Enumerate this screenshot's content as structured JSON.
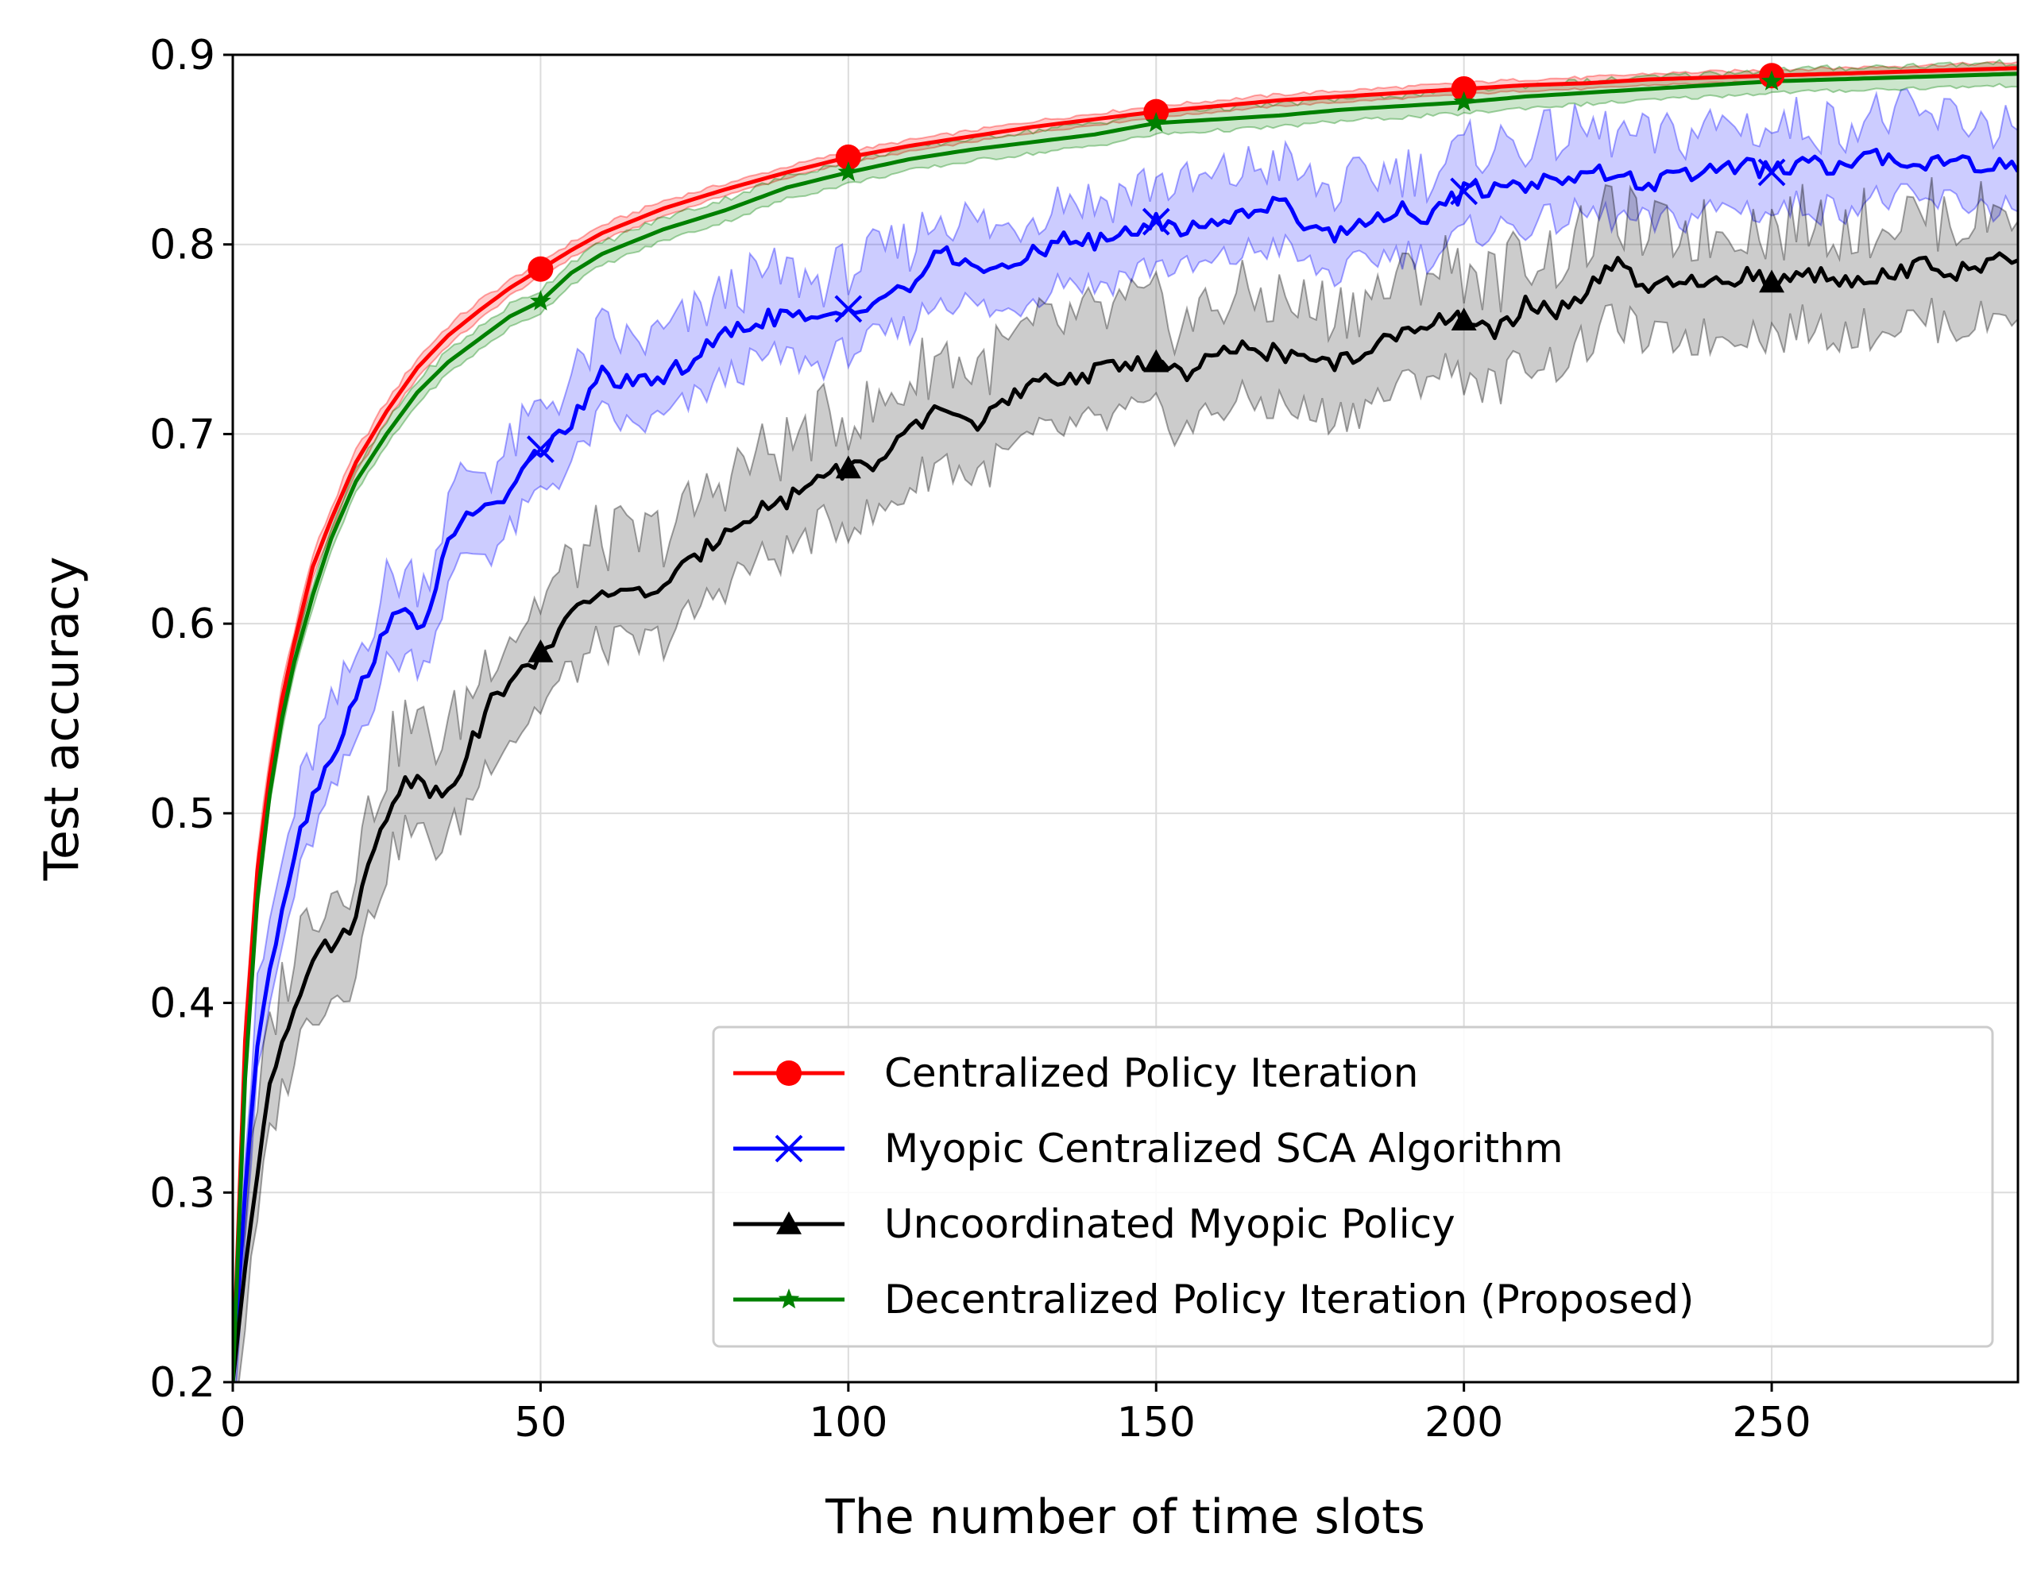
{
  "chart_data": {
    "type": "line",
    "title": "",
    "xlabel": "The number of time slots",
    "ylabel": "Test accuracy",
    "xlim": [
      0,
      290
    ],
    "ylim": [
      0.2,
      0.9
    ],
    "xticks": [
      0,
      50,
      100,
      150,
      200,
      250
    ],
    "xtick_labels": [
      "0",
      "50",
      "100",
      "150",
      "200",
      "250"
    ],
    "yticks": [
      0.2,
      0.3,
      0.4,
      0.5,
      0.6,
      0.7,
      0.8,
      0.9
    ],
    "ytick_labels": [
      "0.2",
      "0.3",
      "0.4",
      "0.5",
      "0.6",
      "0.7",
      "0.8",
      "0.9"
    ],
    "grid": true,
    "legend_position": "bottom-right",
    "series": [
      {
        "name": "Centralized Policy Iteration",
        "color": "#ff0000",
        "marker": "circle",
        "x": [
          0,
          2,
          4,
          6,
          8,
          10,
          13,
          16,
          20,
          25,
          30,
          35,
          40,
          45,
          50,
          55,
          60,
          70,
          80,
          90,
          100,
          110,
          120,
          130,
          140,
          150,
          160,
          170,
          180,
          190,
          200,
          210,
          220,
          230,
          240,
          250,
          260,
          270,
          280,
          290
        ],
        "values": [
          0.2,
          0.38,
          0.47,
          0.52,
          0.56,
          0.59,
          0.63,
          0.655,
          0.685,
          0.712,
          0.735,
          0.752,
          0.765,
          0.777,
          0.787,
          0.797,
          0.806,
          0.819,
          0.829,
          0.838,
          0.846,
          0.852,
          0.857,
          0.862,
          0.866,
          0.87,
          0.873,
          0.876,
          0.878,
          0.88,
          0.882,
          0.884,
          0.885,
          0.887,
          0.888,
          0.889,
          0.89,
          0.891,
          0.892,
          0.893
        ],
        "markers_at": [
          50,
          100,
          150,
          200,
          250
        ],
        "marker_values": [
          0.787,
          0.846,
          0.87,
          0.882,
          0.889
        ],
        "band_half_width": [
          0.012,
          0.012,
          0.01,
          0.008,
          0.008,
          0.007,
          0.006,
          0.006,
          0.006,
          0.005,
          0.005,
          0.005,
          0.005,
          0.004,
          0.004,
          0.004,
          0.004,
          0.004,
          0.003,
          0.003,
          0.003,
          0.003,
          0.003,
          0.003,
          0.003,
          0.003,
          0.003,
          0.003,
          0.003,
          0.003,
          0.003,
          0.003,
          0.003,
          0.003,
          0.003,
          0.003,
          0.003,
          0.003,
          0.003,
          0.003
        ]
      },
      {
        "name": "Myopic Centralized SCA Algorithm",
        "color": "#0000ff",
        "marker": "x",
        "x": [
          0,
          2,
          4,
          6,
          8,
          10,
          13,
          16,
          20,
          25,
          28,
          31,
          35,
          38,
          42,
          45,
          50,
          55,
          60,
          65,
          70,
          75,
          80,
          85,
          90,
          95,
          100,
          105,
          110,
          115,
          120,
          125,
          130,
          135,
          140,
          145,
          150,
          155,
          160,
          165,
          170,
          175,
          180,
          185,
          190,
          195,
          200,
          205,
          210,
          215,
          220,
          225,
          230,
          235,
          240,
          245,
          250,
          255,
          260,
          265,
          270,
          275,
          280,
          285,
          290
        ],
        "values": [
          0.2,
          0.3,
          0.38,
          0.42,
          0.45,
          0.48,
          0.51,
          0.53,
          0.56,
          0.6,
          0.605,
          0.6,
          0.64,
          0.66,
          0.66,
          0.67,
          0.692,
          0.705,
          0.732,
          0.725,
          0.73,
          0.74,
          0.752,
          0.76,
          0.763,
          0.758,
          0.766,
          0.772,
          0.778,
          0.795,
          0.79,
          0.785,
          0.795,
          0.805,
          0.8,
          0.806,
          0.812,
          0.808,
          0.812,
          0.818,
          0.822,
          0.81,
          0.805,
          0.815,
          0.818,
          0.815,
          0.828,
          0.83,
          0.832,
          0.835,
          0.838,
          0.836,
          0.832,
          0.835,
          0.84,
          0.842,
          0.838,
          0.843,
          0.84,
          0.845,
          0.846,
          0.843,
          0.845,
          0.842,
          0.841
        ],
        "markers_at": [
          50,
          100,
          150,
          200,
          250
        ],
        "marker_values": [
          0.692,
          0.766,
          0.812,
          0.828,
          0.838
        ],
        "band_half_width": 0.022
      },
      {
        "name": "Uncoordinated Myopic Policy",
        "color": "#000000",
        "marker": "triangle-up",
        "x": [
          0,
          2,
          4,
          6,
          8,
          10,
          13,
          16,
          19,
          22,
          25,
          28,
          31,
          34,
          37,
          40,
          43,
          46,
          50,
          55,
          60,
          65,
          70,
          75,
          80,
          85,
          90,
          95,
          100,
          105,
          110,
          115,
          120,
          125,
          130,
          135,
          140,
          145,
          150,
          155,
          160,
          165,
          170,
          175,
          180,
          185,
          190,
          195,
          200,
          205,
          210,
          215,
          220,
          225,
          230,
          235,
          240,
          245,
          250,
          255,
          260,
          265,
          270,
          275,
          280,
          285,
          290
        ],
        "values": [
          0.2,
          0.26,
          0.31,
          0.36,
          0.38,
          0.4,
          0.425,
          0.43,
          0.44,
          0.47,
          0.5,
          0.52,
          0.515,
          0.51,
          0.525,
          0.545,
          0.565,
          0.57,
          0.585,
          0.603,
          0.618,
          0.615,
          0.62,
          0.633,
          0.65,
          0.66,
          0.665,
          0.678,
          0.682,
          0.685,
          0.7,
          0.715,
          0.705,
          0.715,
          0.725,
          0.73,
          0.732,
          0.738,
          0.738,
          0.73,
          0.742,
          0.745,
          0.743,
          0.738,
          0.738,
          0.745,
          0.752,
          0.762,
          0.76,
          0.752,
          0.768,
          0.765,
          0.775,
          0.79,
          0.775,
          0.78,
          0.778,
          0.784,
          0.78,
          0.785,
          0.782,
          0.783,
          0.786,
          0.789,
          0.785,
          0.788,
          0.795
        ],
        "markers_at": [
          50,
          100,
          150,
          200,
          250
        ],
        "marker_values": [
          0.585,
          0.682,
          0.738,
          0.76,
          0.78
        ],
        "band_half_width": 0.028
      },
      {
        "name": "Decentralized Policy Iteration (Proposed)",
        "color": "#008000",
        "marker": "star",
        "x": [
          0,
          2,
          4,
          6,
          8,
          10,
          13,
          16,
          20,
          25,
          30,
          35,
          40,
          45,
          50,
          55,
          60,
          70,
          80,
          90,
          100,
          110,
          120,
          130,
          140,
          150,
          160,
          170,
          180,
          190,
          200,
          210,
          220,
          230,
          240,
          250,
          260,
          270,
          280,
          290
        ],
        "values": [
          0.2,
          0.36,
          0.455,
          0.51,
          0.55,
          0.58,
          0.615,
          0.645,
          0.675,
          0.7,
          0.722,
          0.738,
          0.75,
          0.762,
          0.77,
          0.785,
          0.795,
          0.808,
          0.818,
          0.83,
          0.838,
          0.845,
          0.85,
          0.854,
          0.858,
          0.864,
          0.866,
          0.868,
          0.871,
          0.873,
          0.875,
          0.878,
          0.88,
          0.882,
          0.884,
          0.886,
          0.887,
          0.888,
          0.889,
          0.89
        ],
        "markers_at": [
          50,
          100,
          150,
          200,
          250
        ],
        "marker_values": [
          0.77,
          0.838,
          0.864,
          0.875,
          0.886
        ],
        "band_half_width": 0.006
      }
    ]
  }
}
